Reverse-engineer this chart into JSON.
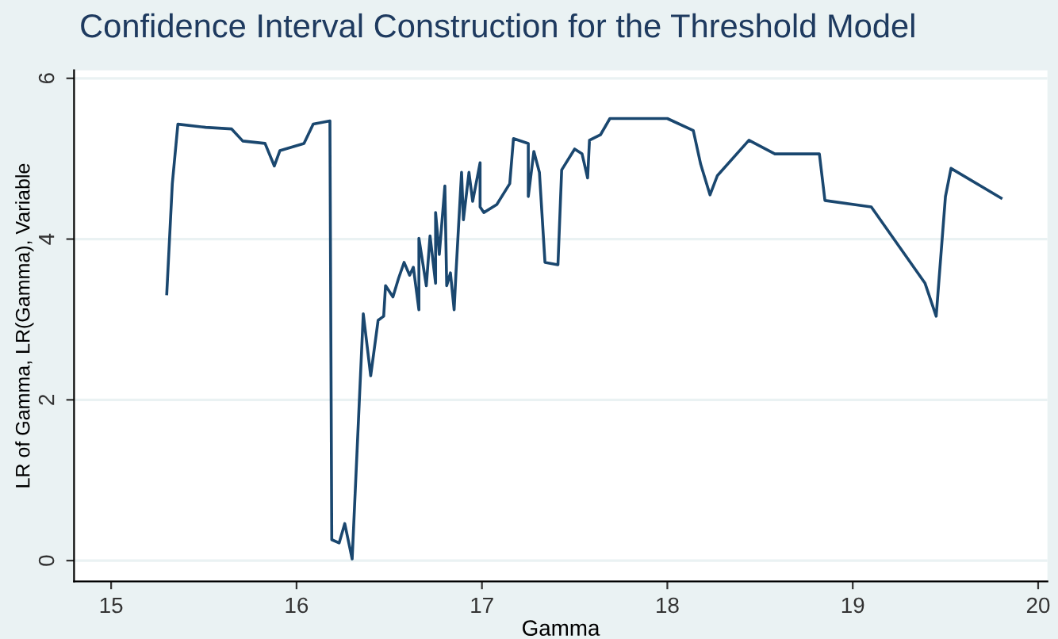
{
  "chart_data": {
    "type": "line",
    "title": "Confidence Interval Construction for the Threshold Model",
    "xlabel": "Gamma",
    "ylabel": "LR of Gamma, LR(Gamma), Variable",
    "x": [
      15.3,
      15.33,
      15.36,
      15.51,
      15.65,
      15.71,
      15.83,
      15.88,
      15.91,
      16.04,
      16.09,
      16.18,
      16.19,
      16.23,
      16.26,
      16.3,
      16.36,
      16.4,
      16.44,
      16.47,
      16.48,
      16.52,
      16.55,
      16.58,
      16.61,
      16.63,
      16.66,
      16.66,
      16.7,
      16.72,
      16.75,
      16.75,
      16.77,
      16.8,
      16.81,
      16.83,
      16.85,
      16.86,
      16.89,
      16.9,
      16.93,
      16.95,
      16.99,
      16.99,
      17.01,
      17.08,
      17.15,
      17.17,
      17.25,
      17.25,
      17.28,
      17.31,
      17.34,
      17.41,
      17.43,
      17.5,
      17.54,
      17.57,
      17.58,
      17.64,
      17.69,
      18.0,
      18.14,
      18.18,
      18.23,
      18.27,
      18.44,
      18.58,
      18.82,
      18.85,
      19.1,
      19.39,
      19.45,
      19.5,
      19.53,
      19.8
    ],
    "series": [
      {
        "color": "#1a476f",
        "values": [
          3.32,
          4.69,
          5.43,
          5.39,
          5.37,
          5.22,
          5.19,
          4.91,
          5.1,
          5.19,
          5.43,
          5.47,
          0.26,
          0.22,
          0.46,
          0.02,
          3.07,
          2.3,
          2.99,
          3.04,
          3.42,
          3.28,
          3.51,
          3.71,
          3.55,
          3.65,
          3.12,
          4.01,
          3.42,
          4.04,
          3.45,
          4.33,
          3.81,
          4.66,
          3.42,
          3.58,
          3.12,
          3.58,
          4.83,
          4.24,
          4.83,
          4.47,
          4.95,
          4.4,
          4.33,
          4.43,
          4.69,
          5.25,
          5.19,
          4.53,
          5.09,
          4.83,
          3.71,
          3.68,
          4.86,
          5.12,
          5.06,
          4.76,
          5.23,
          5.3,
          5.5,
          5.5,
          5.35,
          4.93,
          4.55,
          4.79,
          5.23,
          5.06,
          5.06,
          4.48,
          4.4,
          3.45,
          3.04,
          4.53,
          4.88,
          4.51
        ]
      }
    ],
    "xlim": [
      14.8,
      20.05
    ],
    "xticks": [
      15,
      16,
      17,
      18,
      19,
      20
    ],
    "ylim": [
      -0.26,
      6.1
    ],
    "yticks": [
      0,
      2,
      4,
      6
    ],
    "grid": "y",
    "legend": false,
    "marker": "none",
    "line_style": "solid"
  }
}
